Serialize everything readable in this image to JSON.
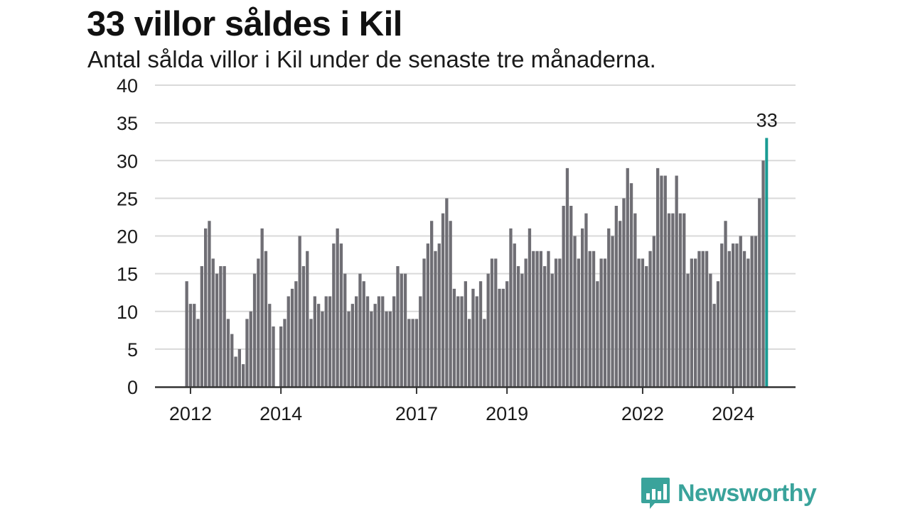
{
  "title": "33 villor såldes i Kil",
  "subtitle": "Antal sålda villor i Kil under de senaste tre månaderna.",
  "brand": {
    "name": "Newsworthy",
    "icon": "newsworthy-logo-icon",
    "color": "#3aa39b"
  },
  "chart_data": {
    "type": "bar",
    "title": "33 villor såldes i Kil",
    "subtitle": "Antal sålda villor i Kil under de senaste tre månaderna.",
    "ylim": [
      0,
      40
    ],
    "yticks": [
      "0",
      "5",
      "10",
      "15",
      "20",
      "25",
      "30",
      "35",
      "40"
    ],
    "xticks": [
      {
        "label": "2012",
        "index": 1
      },
      {
        "label": "2014",
        "index": 25
      },
      {
        "label": "2017",
        "index": 61
      },
      {
        "label": "2019",
        "index": 85
      },
      {
        "label": "2022",
        "index": 121
      },
      {
        "label": "2024",
        "index": 145
      }
    ],
    "grid": true,
    "bar_color": "#6f6e74",
    "highlight_color": "#1a9b93",
    "highlight_label": "33",
    "values": [
      14,
      11,
      11,
      9,
      16,
      21,
      22,
      17,
      15,
      16,
      16,
      9,
      7,
      4,
      5,
      3,
      9,
      10,
      15,
      17,
      21,
      18,
      11,
      8,
      null,
      8,
      9,
      12,
      13,
      14,
      20,
      16,
      18,
      9,
      12,
      11,
      10,
      12,
      12,
      19,
      21,
      19,
      15,
      10,
      11,
      12,
      15,
      14,
      12,
      10,
      11,
      12,
      12,
      10,
      10,
      12,
      16,
      15,
      15,
      9,
      9,
      9,
      12,
      17,
      19,
      22,
      18,
      19,
      23,
      25,
      22,
      13,
      12,
      12,
      14,
      9,
      13,
      12,
      14,
      9,
      15,
      17,
      17,
      13,
      13,
      14,
      21,
      19,
      16,
      15,
      17,
      21,
      18,
      18,
      18,
      16,
      18,
      15,
      17,
      17,
      24,
      29,
      24,
      20,
      17,
      21,
      23,
      18,
      18,
      14,
      17,
      17,
      21,
      20,
      24,
      22,
      25,
      29,
      27,
      23,
      17,
      17,
      16,
      18,
      20,
      29,
      28,
      28,
      23,
      23,
      28,
      23,
      23,
      15,
      17,
      17,
      18,
      18,
      18,
      15,
      11,
      14,
      19,
      22,
      18,
      19,
      19,
      20,
      18,
      17,
      20,
      20,
      25,
      30,
      33
    ]
  }
}
